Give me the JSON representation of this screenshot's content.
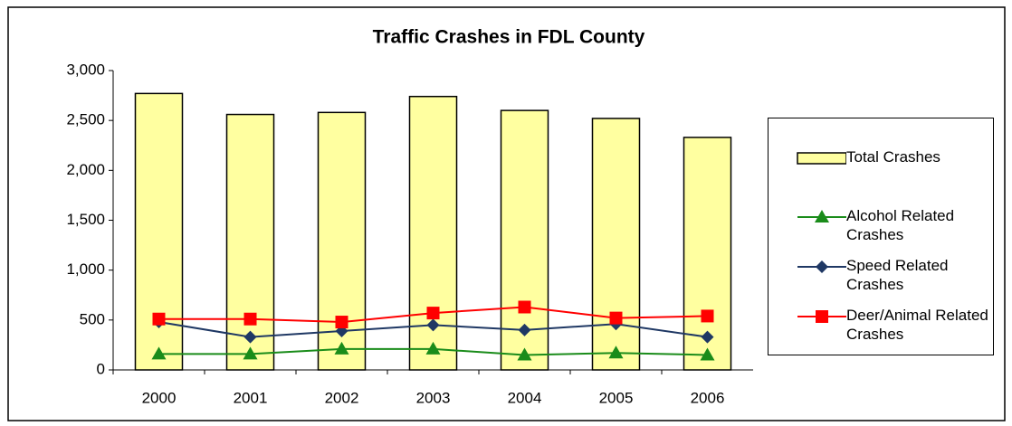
{
  "chart_data": {
    "type": "bar",
    "title": "Traffic Crashes in FDL County",
    "categories": [
      "2000",
      "2001",
      "2002",
      "2003",
      "2004",
      "2005",
      "2006"
    ],
    "series": [
      {
        "name": "Total Crashes",
        "type": "bar",
        "color": "#ffffa0",
        "values": [
          2770,
          2560,
          2580,
          2740,
          2600,
          2520,
          2330
        ]
      },
      {
        "name": "Alcohol Related Crashes",
        "type": "line",
        "marker": "triangle",
        "color": "#1a8c1a",
        "values": [
          160,
          160,
          210,
          210,
          150,
          170,
          150
        ]
      },
      {
        "name": "Speed Related Crashes",
        "type": "line",
        "marker": "diamond",
        "color": "#1f3864",
        "values": [
          480,
          330,
          390,
          450,
          400,
          460,
          330
        ]
      },
      {
        "name": "Deer/Animal Related Crashes",
        "type": "line",
        "marker": "square",
        "color": "#ff0000",
        "values": [
          510,
          510,
          480,
          570,
          630,
          520,
          540
        ]
      }
    ],
    "ylim": [
      0,
      3000
    ],
    "yticks": [
      0,
      500,
      {
        "value": 1000,
        "label": "1,000"
      },
      {
        "value": 1500,
        "label": "1,500"
      },
      {
        "value": 2000,
        "label": "2,000"
      },
      {
        "value": 2500,
        "label": "2,500"
      },
      {
        "value": 3000,
        "label": "3,000"
      }
    ],
    "grid": false,
    "legend": "right"
  }
}
